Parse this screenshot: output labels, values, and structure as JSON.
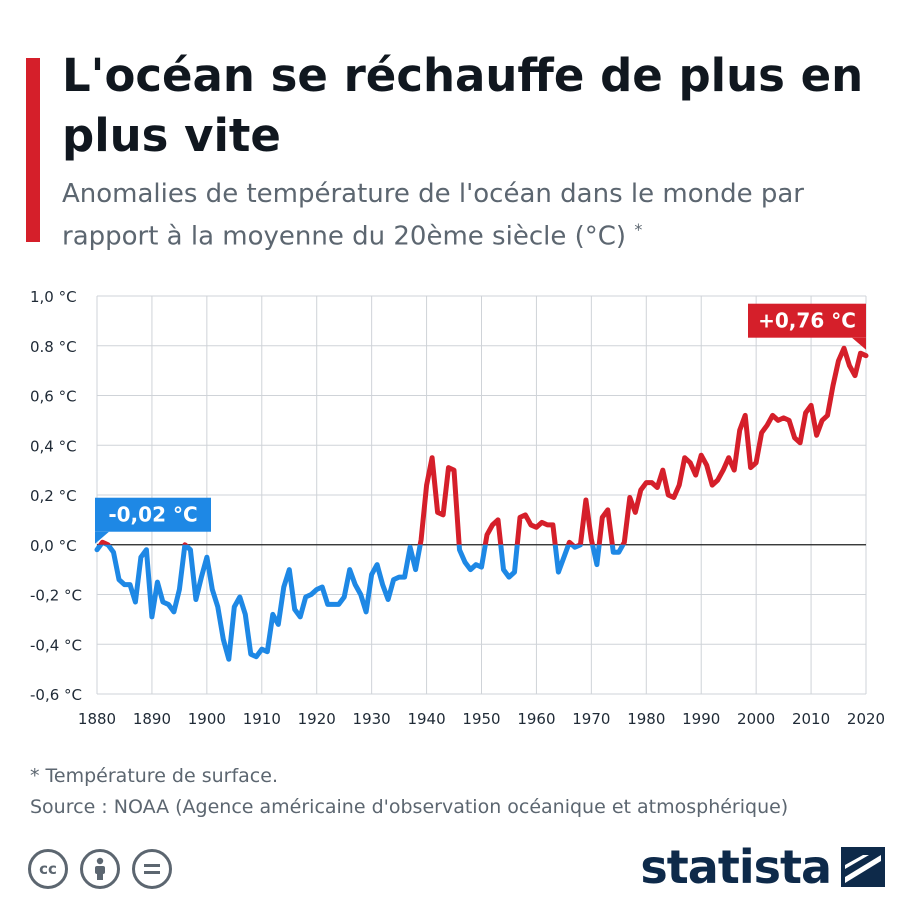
{
  "header": {
    "title": "L'océan se réchauffe de plus en plus vite",
    "subtitle": "Anomalies de température de l'océan dans le monde par rapport à la moyenne du 20ème siècle (°C)",
    "subtitle_mark": "*"
  },
  "footer": {
    "footnote": "* Température de surface.",
    "source": "Source : NOAA (Agence américaine d'observation océanique et atmosphérique)",
    "brand": "statista",
    "license_icons": [
      "cc-icon",
      "attribution-icon",
      "no-derivatives-icon"
    ]
  },
  "colors": {
    "negative": "#1e88e5",
    "positive": "#d51f2a",
    "accent": "#d51f2a",
    "brand": "#0e2a4a"
  },
  "chart_data": {
    "type": "line",
    "x": [
      1880,
      1881,
      1882,
      1883,
      1884,
      1885,
      1886,
      1887,
      1888,
      1889,
      1890,
      1891,
      1892,
      1893,
      1894,
      1895,
      1896,
      1897,
      1898,
      1899,
      1900,
      1901,
      1902,
      1903,
      1904,
      1905,
      1906,
      1907,
      1908,
      1909,
      1910,
      1911,
      1912,
      1913,
      1914,
      1915,
      1916,
      1917,
      1918,
      1919,
      1920,
      1921,
      1922,
      1923,
      1924,
      1925,
      1926,
      1927,
      1928,
      1929,
      1930,
      1931,
      1932,
      1933,
      1934,
      1935,
      1936,
      1937,
      1938,
      1939,
      1940,
      1941,
      1942,
      1943,
      1944,
      1945,
      1946,
      1947,
      1948,
      1949,
      1950,
      1951,
      1952,
      1953,
      1954,
      1955,
      1956,
      1957,
      1958,
      1959,
      1960,
      1961,
      1962,
      1963,
      1964,
      1965,
      1966,
      1967,
      1968,
      1969,
      1970,
      1971,
      1972,
      1973,
      1974,
      1975,
      1976,
      1977,
      1978,
      1979,
      1980,
      1981,
      1982,
      1983,
      1984,
      1985,
      1986,
      1987,
      1988,
      1989,
      1990,
      1991,
      1992,
      1993,
      1994,
      1995,
      1996,
      1997,
      1998,
      1999,
      2000,
      2001,
      2002,
      2003,
      2004,
      2005,
      2006,
      2007,
      2008,
      2009,
      2010,
      2011,
      2012,
      2013,
      2014,
      2015,
      2016,
      2017,
      2018,
      2019,
      2020
    ],
    "y": [
      -0.02,
      0.01,
      0.0,
      -0.03,
      -0.14,
      -0.16,
      -0.16,
      -0.23,
      -0.05,
      -0.02,
      -0.29,
      -0.15,
      -0.23,
      -0.24,
      -0.27,
      -0.18,
      0.0,
      -0.02,
      -0.22,
      -0.13,
      -0.05,
      -0.18,
      -0.25,
      -0.38,
      -0.46,
      -0.25,
      -0.21,
      -0.28,
      -0.44,
      -0.45,
      -0.42,
      -0.43,
      -0.28,
      -0.32,
      -0.17,
      -0.1,
      -0.26,
      -0.29,
      -0.21,
      -0.2,
      -0.18,
      -0.17,
      -0.24,
      -0.24,
      -0.24,
      -0.21,
      -0.1,
      -0.16,
      -0.2,
      -0.27,
      -0.12,
      -0.08,
      -0.16,
      -0.22,
      -0.14,
      -0.13,
      -0.13,
      -0.01,
      -0.1,
      0.02,
      0.24,
      0.35,
      0.13,
      0.12,
      0.31,
      0.3,
      -0.02,
      -0.07,
      -0.1,
      -0.08,
      -0.09,
      0.04,
      0.08,
      0.1,
      -0.1,
      -0.13,
      -0.11,
      0.11,
      0.12,
      0.08,
      0.07,
      0.09,
      0.08,
      0.08,
      -0.11,
      -0.05,
      0.01,
      -0.01,
      0.0,
      0.18,
      0.02,
      -0.08,
      0.11,
      0.14,
      -0.03,
      -0.03,
      0.01,
      0.19,
      0.13,
      0.22,
      0.25,
      0.25,
      0.23,
      0.3,
      0.2,
      0.19,
      0.24,
      0.35,
      0.33,
      0.28,
      0.36,
      0.32,
      0.24,
      0.26,
      0.3,
      0.35,
      0.3,
      0.46,
      0.52,
      0.31,
      0.33,
      0.45,
      0.48,
      0.52,
      0.5,
      0.51,
      0.5,
      0.43,
      0.41,
      0.53,
      0.56,
      0.44,
      0.5,
      0.52,
      0.64,
      0.74,
      0.79,
      0.72,
      0.68,
      0.77,
      0.76
    ],
    "ylim": [
      -0.6,
      1.0
    ],
    "yticks": [
      1.0,
      0.8,
      0.6,
      0.4,
      0.2,
      0.0,
      -0.2,
      -0.4,
      -0.6
    ],
    "ytick_labels": [
      "1,0 °C",
      "0.8 °C",
      "0,6 °C",
      "0,4 °C",
      "0,2 °C",
      "0,0 °C",
      "-0,2 °C",
      "-0,4 °C",
      "-0,6 °C"
    ],
    "xlim": [
      1880,
      2020
    ],
    "xticks": [
      1880,
      1890,
      1900,
      1910,
      1920,
      1930,
      1940,
      1950,
      1960,
      1970,
      1980,
      1990,
      2000,
      2010,
      2020
    ],
    "xtick_labels": [
      "1880",
      "1890",
      "1900",
      "1910",
      "1920",
      "1930",
      "1940",
      "1950",
      "1960",
      "1970",
      "1980",
      "1990",
      "2000",
      "2010",
      "2020"
    ],
    "grid": true,
    "annotations": [
      {
        "label": "-0,02 °C",
        "x": 1880,
        "y": -0.02,
        "color": "#1e88e5"
      },
      {
        "label": "+0,76 °C",
        "x": 2020,
        "y": 0.76,
        "color": "#d51f2a"
      }
    ]
  }
}
